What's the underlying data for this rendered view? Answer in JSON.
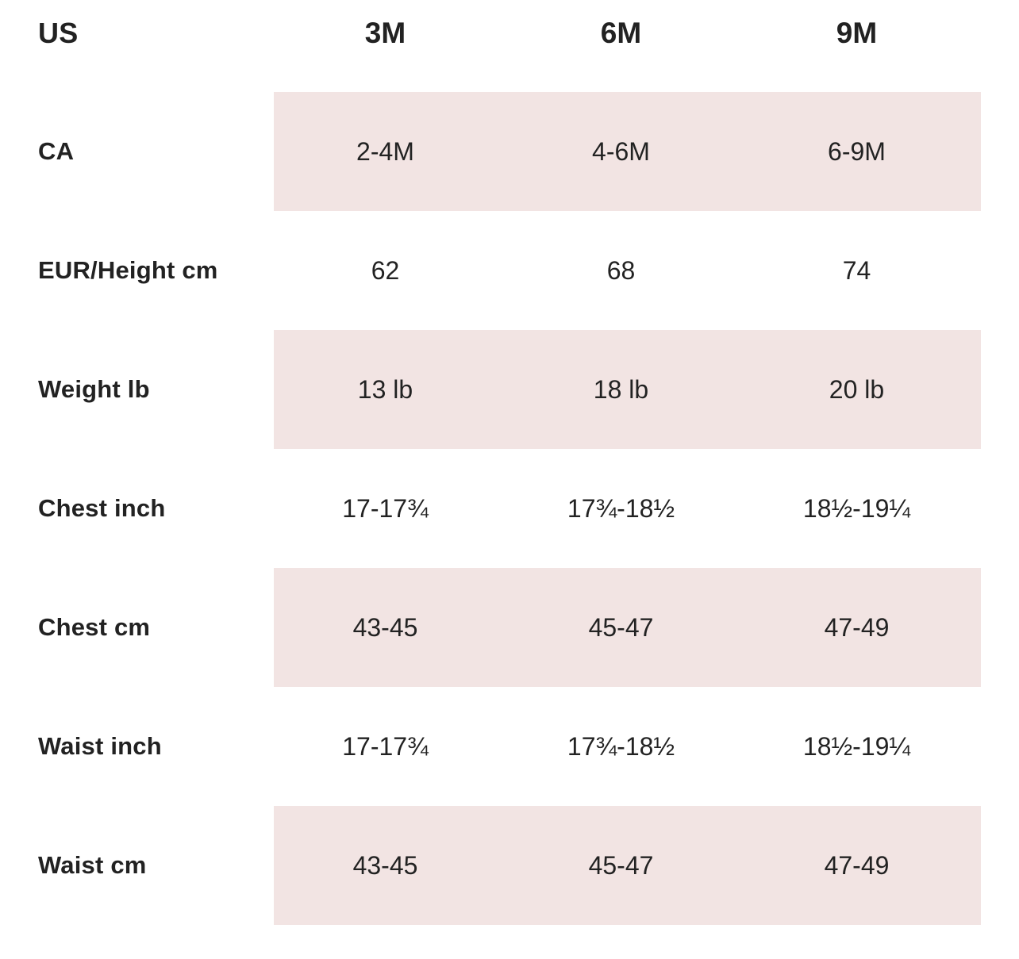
{
  "table": {
    "header": {
      "label": "US",
      "values": [
        "3M",
        "6M",
        "9M"
      ]
    },
    "rows": [
      {
        "label": "CA",
        "values": [
          "2-4M",
          "4-6M",
          "6-9M"
        ],
        "shaded": true
      },
      {
        "label": "EUR/Height cm",
        "values": [
          "62",
          "68",
          "74"
        ],
        "shaded": false
      },
      {
        "label": "Weight lb",
        "values": [
          "13 lb",
          "18 lb",
          "20 lb"
        ],
        "shaded": true
      },
      {
        "label": "Chest inch",
        "values": [
          "17-17¾",
          "17¾-18½",
          "18½-19¼"
        ],
        "shaded": false
      },
      {
        "label": "Chest cm",
        "values": [
          "43-45",
          "45-47",
          "47-49"
        ],
        "shaded": true
      },
      {
        "label": "Waist inch",
        "values": [
          "17-17¾",
          "17¾-18½",
          "18½-19¼"
        ],
        "shaded": false
      },
      {
        "label": "Waist cm",
        "values": [
          "43-45",
          "45-47",
          "47-49"
        ],
        "shaded": true
      }
    ]
  },
  "colors": {
    "band": "#f2e4e3",
    "text": "#222222",
    "background": "#ffffff"
  }
}
